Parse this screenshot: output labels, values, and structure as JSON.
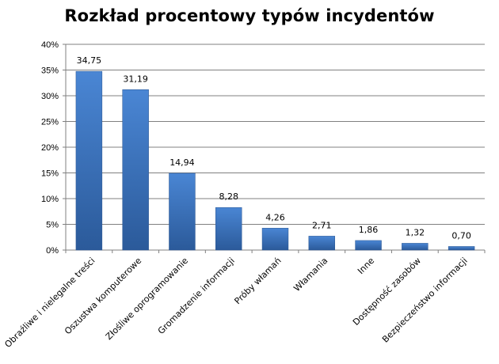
{
  "chart_data": {
    "type": "bar",
    "title": "Rozkład procentowy typów incydentów",
    "xlabel": "",
    "ylabel": "",
    "ylim": [
      0,
      40
    ],
    "y_ticks": [
      "0%",
      "5%",
      "10%",
      "15%",
      "20%",
      "25%",
      "30%",
      "35%",
      "40%"
    ],
    "y_tick_values": [
      0,
      5,
      10,
      15,
      20,
      25,
      30,
      35,
      40
    ],
    "grid": true,
    "legend": "none",
    "bar_color": "#3a6fb8",
    "categories": [
      "Obraźliwe i nielegalne treści",
      "Oszustwa komputerowe",
      "Złośliwe oprogramowanie",
      "Gromadzenie informacji",
      "Próby włamań",
      "Włamania",
      "Inne",
      "Dostępność zasobów",
      "Bezpieczeństwo informacji"
    ],
    "values": [
      34.75,
      31.19,
      14.94,
      8.28,
      4.26,
      2.71,
      1.86,
      1.32,
      0.7
    ],
    "value_labels": [
      "34,75",
      "31,19",
      "14,94",
      "8,28",
      "4,26",
      "2,71",
      "1,86",
      "1,32",
      "0,70"
    ]
  }
}
